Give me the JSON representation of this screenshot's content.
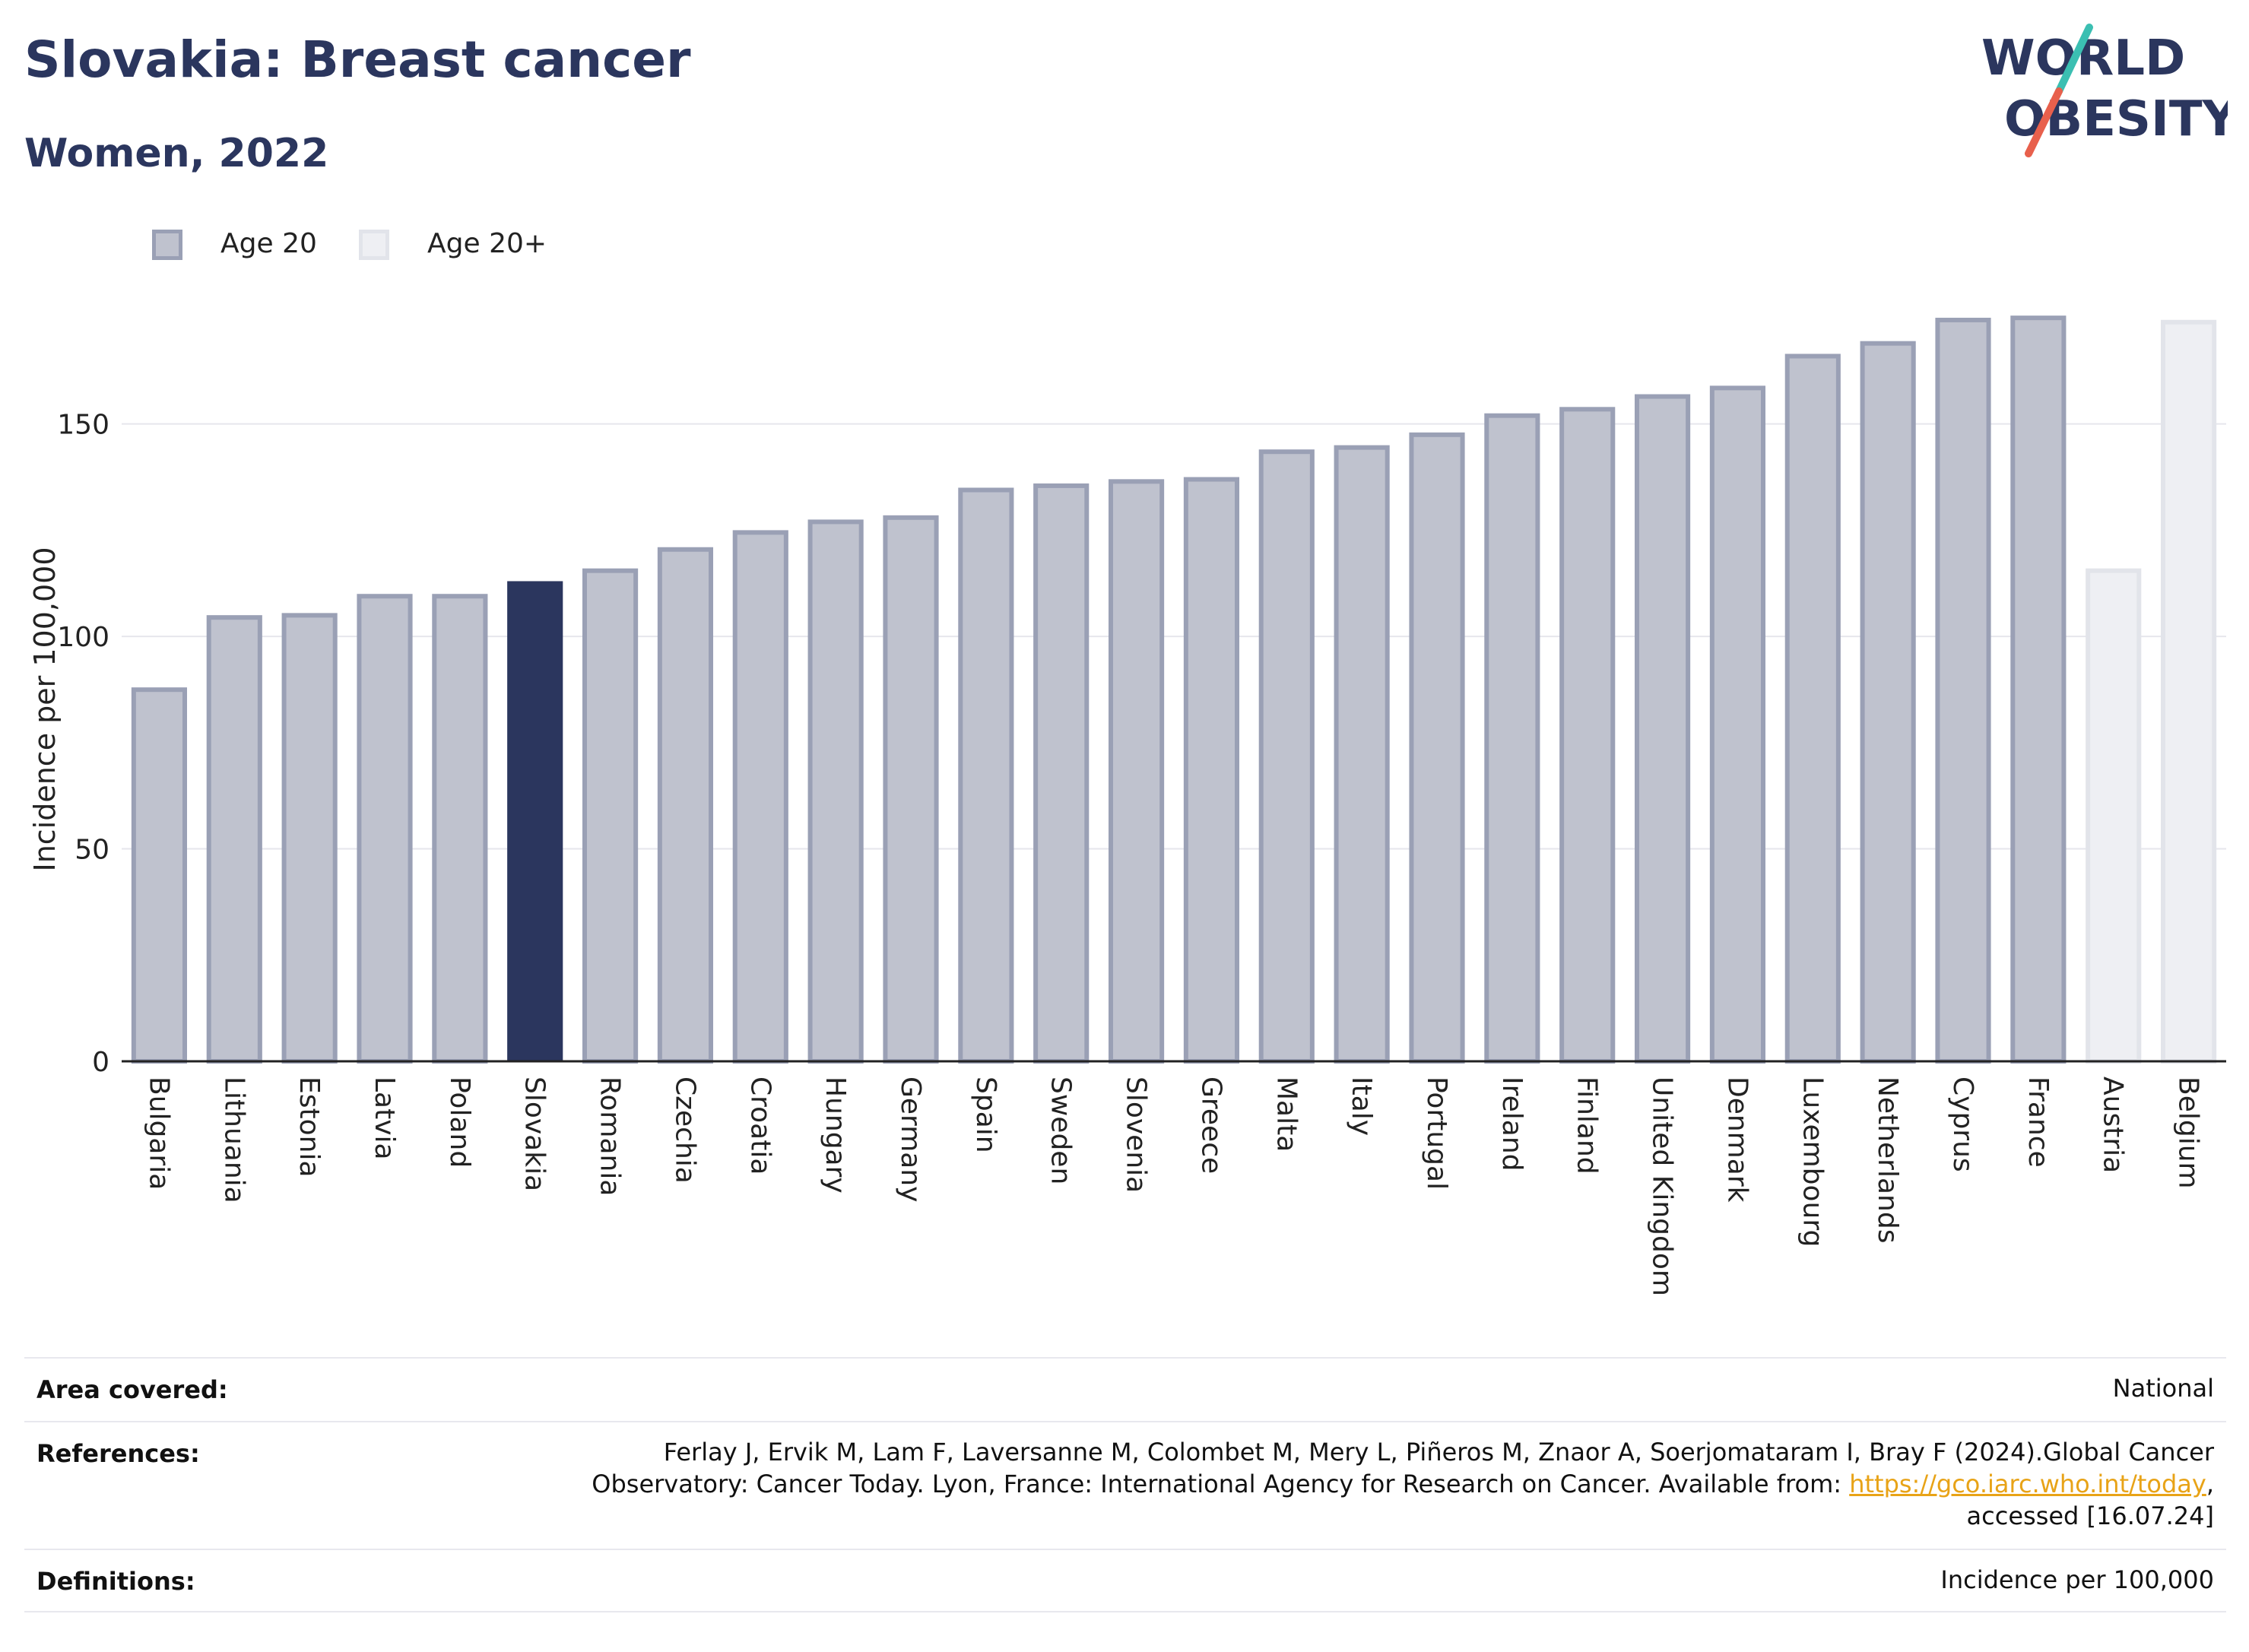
{
  "header": {
    "title": "Slovakia: Breast cancer",
    "subtitle": "Women, 2022"
  },
  "logo": {
    "line1": "WORLD",
    "line2": "OBESITY",
    "color": "#2b365e",
    "accent_teal": "#3bbfb2",
    "accent_red": "#e8604c"
  },
  "colors": {
    "highlight": "#2b365e",
    "age20_fill": "#bfc2ce",
    "age20_border": "#9aa0b5",
    "age20plus_fill": "#eeeff3",
    "age20plus_border": "#e2e4ea"
  },
  "legend": [
    {
      "label": "Age 20",
      "key": "age20"
    },
    {
      "label": "Age 20+",
      "key": "age20plus"
    }
  ],
  "chart_data": {
    "type": "bar",
    "title": "Slovakia: Breast cancer",
    "subtitle": "Women, 2022",
    "ylabel": "Incidence per 100,000",
    "xlabel": "",
    "ylim": [
      0,
      180
    ],
    "yticks": [
      0,
      50,
      100,
      150
    ],
    "grid": true,
    "legend_position": "top-left",
    "highlight": "Slovakia",
    "categories": [
      "Bulgaria",
      "Lithuania",
      "Estonia",
      "Latvia",
      "Poland",
      "Slovakia",
      "Romania",
      "Czechia",
      "Croatia",
      "Hungary",
      "Germany",
      "Spain",
      "Sweden",
      "Slovenia",
      "Greece",
      "Malta",
      "Italy",
      "Portugal",
      "Ireland",
      "Finland",
      "United Kingdom",
      "Denmark",
      "Luxembourg",
      "Netherlands",
      "Cyprus",
      "France",
      "Austria",
      "Belgium"
    ],
    "values": [
      88,
      105,
      105.5,
      110,
      110,
      113,
      116,
      121,
      125,
      127.5,
      128.5,
      135,
      136,
      137,
      137.5,
      144,
      145,
      148,
      152.5,
      154,
      157,
      159,
      166.5,
      169.5,
      175,
      175.5,
      116,
      174.5
    ],
    "series_of": [
      "age20",
      "age20",
      "age20",
      "age20",
      "age20",
      "age20",
      "age20",
      "age20",
      "age20",
      "age20",
      "age20",
      "age20",
      "age20",
      "age20",
      "age20",
      "age20",
      "age20",
      "age20",
      "age20",
      "age20",
      "age20",
      "age20",
      "age20",
      "age20",
      "age20",
      "age20",
      "age20plus",
      "age20plus"
    ]
  },
  "info": {
    "area_label": "Area covered:",
    "area_value": "National",
    "references_label": "References:",
    "references_line1": "Ferlay J, Ervik M, Lam F, Laversanne M, Colombet M, Mery L, Piñeros M, Znaor A, Soerjomataram I, Bray F (2024).Global Cancer",
    "references_line2_pre": "Observatory: Cancer Today. Lyon, France: International Agency for Research on Cancer. Available from: ",
    "references_link": "https://gco.iarc.who.int/today",
    "references_line2_post": ",",
    "references_line3": "accessed [16.07.24]",
    "definitions_label": "Definitions:",
    "definitions_value": "Incidence per 100,000"
  }
}
